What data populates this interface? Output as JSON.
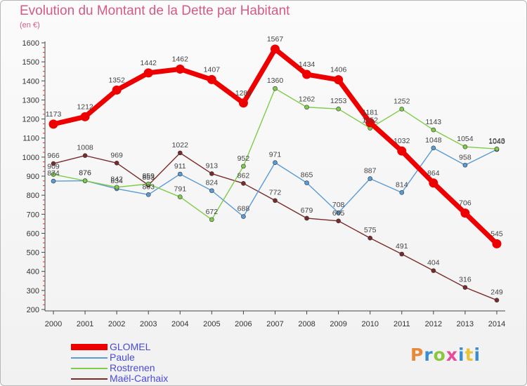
{
  "title": "Evolution du Montant de la Dette par Habitant",
  "subtitle": "(en €)",
  "logo": {
    "text": "Proxiti",
    "colors": [
      "#e8893a",
      "#3a8ed0",
      "#8cc63f",
      "#e84a9a",
      "#3a8ed0",
      "#e8c43a",
      "#3a8ed0"
    ]
  },
  "chart_data": {
    "type": "line",
    "title": "Evolution du Montant de la Dette par Habitant",
    "ylabel": "(en €)",
    "xlabel": "",
    "x": [
      "2000",
      "2001",
      "2002",
      "2003",
      "2004",
      "2005",
      "2006",
      "2007",
      "2008",
      "2009",
      "2010",
      "2011",
      "2012",
      "2013",
      "2014"
    ],
    "yticks": [
      200,
      300,
      400,
      500,
      600,
      700,
      800,
      900,
      1000,
      1100,
      1200,
      1300,
      1400,
      1500,
      1600
    ],
    "ylim": [
      200,
      1650
    ],
    "grid": false,
    "legend_position": "bottom-left",
    "series": [
      {
        "name": "GLOMEL",
        "color": "#ee0000",
        "values": [
          1173,
          1212,
          1352,
          1442,
          1462,
          1407,
          1284,
          1567,
          1434,
          1406,
          1181,
          1032,
          864,
          706,
          545
        ]
      },
      {
        "name": "Paule",
        "color": "#5a9bd4",
        "values": [
          874,
          876,
          834,
          803,
          911,
          824,
          688,
          971,
          865,
          708,
          887,
          814,
          1048,
          958,
          1040
        ]
      },
      {
        "name": "Rostrenen",
        "color": "#7fcc4a",
        "values": [
          909,
          876,
          842,
          859,
          791,
          672,
          952,
          1360,
          1262,
          1253,
          1152,
          1252,
          1143,
          1054,
          1043
        ]
      },
      {
        "name": "Maël-Carhaix",
        "color": "#7a2a2a",
        "values": [
          966,
          1008,
          969,
          853,
          1022,
          913,
          862,
          772,
          679,
          665,
          575,
          491,
          404,
          316,
          249
        ]
      }
    ]
  }
}
